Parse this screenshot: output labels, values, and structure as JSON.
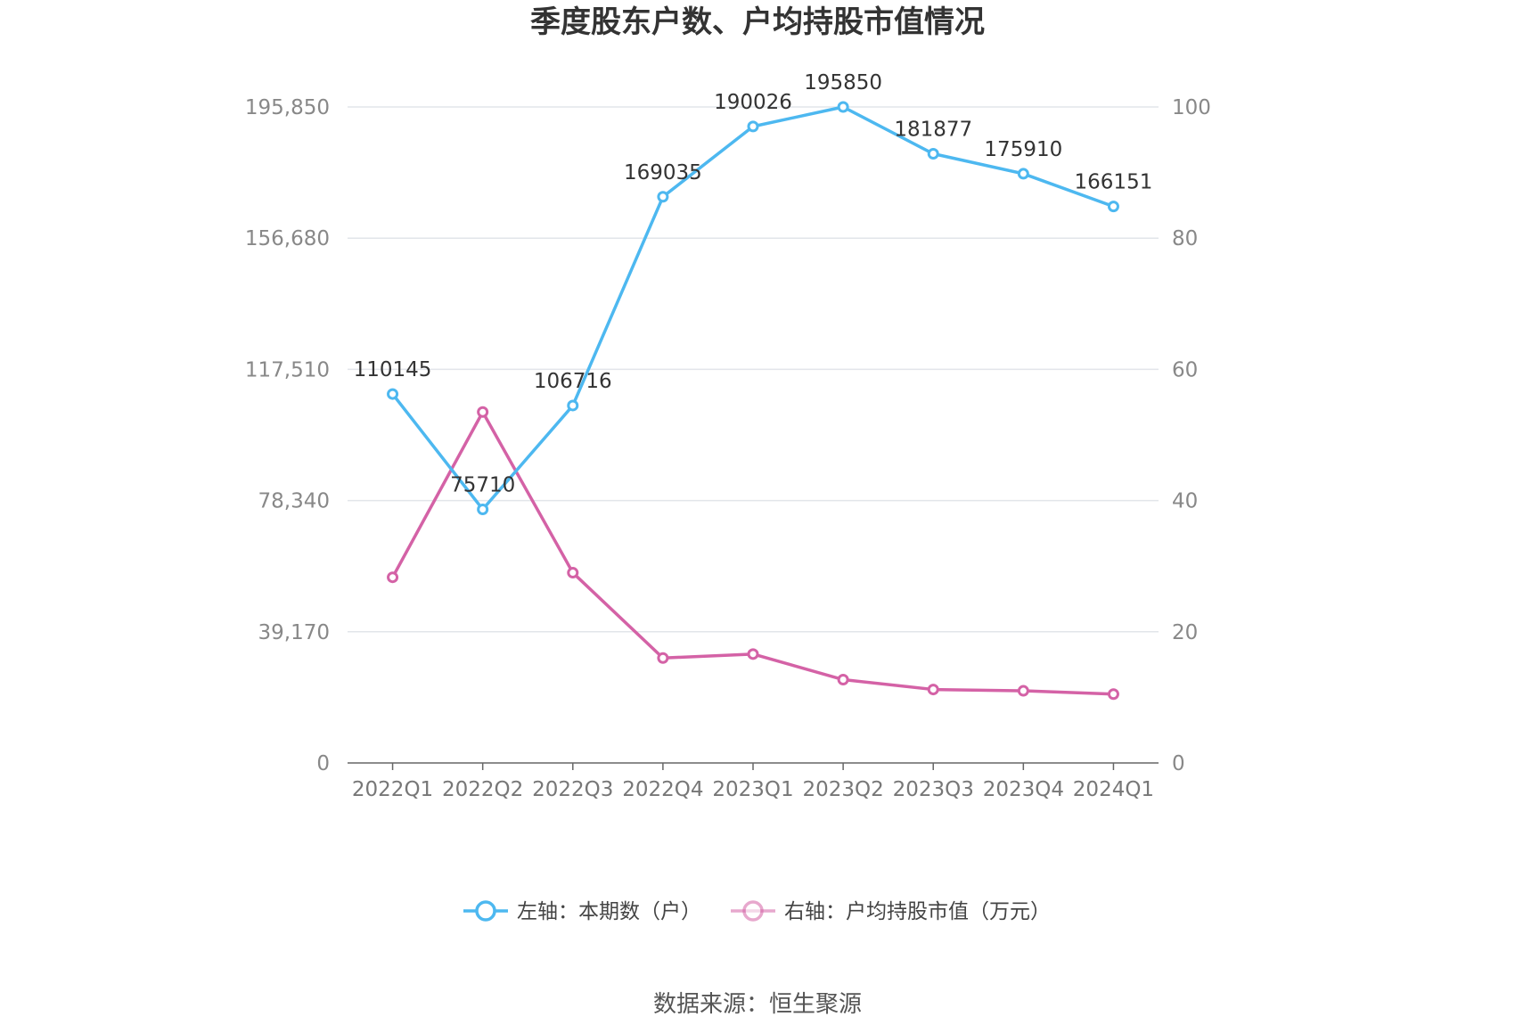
{
  "chart_data": {
    "type": "line",
    "title": "季度股东户数、户均持股市值情况",
    "categories": [
      "2022Q1",
      "2022Q2",
      "2022Q3",
      "2022Q4",
      "2023Q1",
      "2023Q2",
      "2023Q3",
      "2023Q4",
      "2024Q1"
    ],
    "left_axis": {
      "ylim": [
        0,
        195850
      ],
      "ticks": [
        "0",
        "39,170",
        "78,340",
        "117,510",
        "156,680",
        "195,850"
      ]
    },
    "right_axis": {
      "ylim": [
        0,
        100
      ],
      "ticks": [
        "0",
        "20",
        "40",
        "60",
        "80",
        "100"
      ]
    },
    "series": [
      {
        "name": "左轴：本期数（户）",
        "axis": "left",
        "color": "#4db8f0",
        "values": [
          110145,
          75710,
          106716,
          169035,
          190026,
          195850,
          181877,
          175910,
          166151
        ],
        "labels": [
          "110145",
          "75710",
          "106716",
          "169035",
          "190026",
          "195850",
          "181877",
          "175910",
          "166151"
        ]
      },
      {
        "name": "右轴：户均持股市值（万元）",
        "axis": "right",
        "color": "#d462a6",
        "values": [
          28.3,
          53.5,
          29,
          16,
          16.6,
          12.7,
          11.2,
          11,
          10.5
        ]
      }
    ],
    "grid": true,
    "legend_position": "bottom-center"
  },
  "footer": {
    "source": "数据来源：恒生聚源"
  }
}
